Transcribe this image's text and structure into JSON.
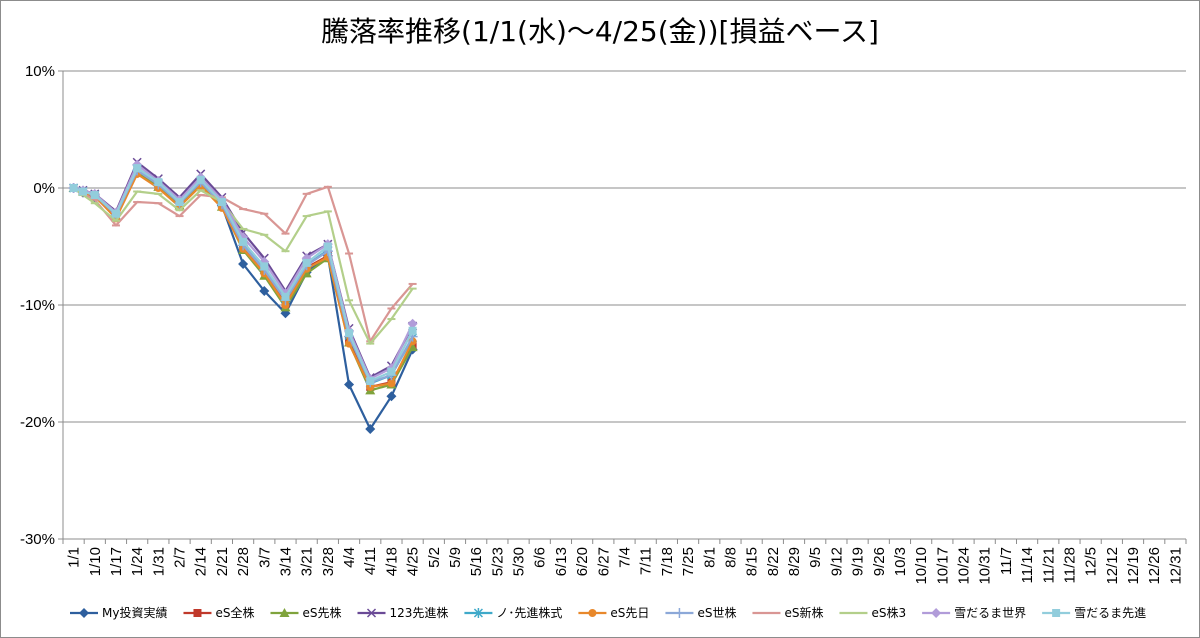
{
  "chart_data": {
    "type": "line",
    "title": "騰落率推移(1/1(水)～4/25(金))[損益ベース]",
    "ylim": [
      -30,
      10
    ],
    "yticks": [
      "10%",
      "0%",
      "-10%",
      "-20%",
      "-30%"
    ],
    "ytick_values": [
      10,
      0,
      -10,
      -20,
      -30
    ],
    "grid": "horizontal",
    "legend_position": "bottom",
    "categories": [
      "1/1",
      "1/10",
      "1/17",
      "1/24",
      "1/31",
      "2/7",
      "2/14",
      "2/21",
      "2/28",
      "3/7",
      "3/14",
      "3/21",
      "3/28",
      "4/4",
      "4/11",
      "4/18",
      "4/25",
      "5/2",
      "5/9",
      "5/16",
      "5/23",
      "5/30",
      "6/6",
      "6/13",
      "6/20",
      "6/27",
      "7/4",
      "7/11",
      "7/18",
      "7/25",
      "8/1",
      "8/8",
      "8/15",
      "8/22",
      "8/29",
      "9/5",
      "9/12",
      "9/19",
      "9/26",
      "10/3",
      "10/10",
      "10/17",
      "10/24",
      "10/31",
      "11/7",
      "11/14",
      "11/21",
      "11/28",
      "12/5",
      "12/12",
      "12/19",
      "12/26",
      "12/31"
    ],
    "x": [
      "1/1",
      "1/5",
      "1/10",
      "1/17",
      "1/24",
      "1/31",
      "2/7",
      "2/14",
      "2/21",
      "2/28",
      "3/7",
      "3/14",
      "3/21",
      "3/28",
      "4/4",
      "4/11",
      "4/18",
      "4/25"
    ],
    "series": [
      {
        "name": "My投資実績",
        "color": "#2e5f9e",
        "marker": "diamond",
        "values": [
          0,
          -0.4,
          -0.8,
          -2.2,
          1.5,
          0.3,
          -1.2,
          0.5,
          -1.5,
          -6.5,
          -8.8,
          -10.7,
          -7.2,
          -5.8,
          -16.8,
          -20.6,
          -17.8,
          -13.8
        ]
      },
      {
        "name": "eS全株",
        "color": "#c0392b",
        "marker": "square",
        "values": [
          0,
          -0.3,
          -0.6,
          -2.4,
          1.4,
          0.2,
          -1.4,
          0.4,
          -1.4,
          -5.0,
          -7.0,
          -9.9,
          -6.8,
          -5.8,
          -13.0,
          -17.0,
          -16.6,
          -13.4
        ]
      },
      {
        "name": "eS先株",
        "color": "#7fa33c",
        "marker": "triangle",
        "values": [
          0,
          -0.3,
          -0.7,
          -2.5,
          1.3,
          0.1,
          -1.5,
          0.3,
          -1.6,
          -5.3,
          -7.5,
          -10.2,
          -7.3,
          -6.0,
          -13.2,
          -17.3,
          -16.8,
          -13.6
        ]
      },
      {
        "name": "123先進株",
        "color": "#6a4a96",
        "marker": "x",
        "values": [
          0,
          -0.2,
          -0.5,
          -2.0,
          2.2,
          0.8,
          -0.8,
          1.2,
          -0.8,
          -3.8,
          -6.0,
          -8.8,
          -5.8,
          -4.8,
          -12.0,
          -16.2,
          -15.2,
          -11.8
        ]
      },
      {
        "name": "ノ･先進株式",
        "color": "#3fa9c9",
        "marker": "star",
        "values": [
          0,
          -0.3,
          -0.6,
          -2.3,
          1.6,
          0.4,
          -1.3,
          0.6,
          -1.3,
          -4.8,
          -7.0,
          -9.5,
          -6.6,
          -5.3,
          -12.6,
          -16.7,
          -16.0,
          -12.8
        ]
      },
      {
        "name": "eS先日",
        "color": "#e8882b",
        "marker": "circle",
        "values": [
          0,
          -0.4,
          -0.7,
          -2.6,
          1.2,
          0.0,
          -1.6,
          0.2,
          -1.7,
          -5.2,
          -7.3,
          -10.0,
          -6.9,
          -5.9,
          -13.3,
          -17.0,
          -16.7,
          -13.1
        ]
      },
      {
        "name": "eS世株",
        "color": "#8ca8d8",
        "marker": "plus",
        "values": [
          0,
          -0.3,
          -0.6,
          -2.3,
          1.5,
          0.3,
          -1.3,
          0.5,
          -1.4,
          -4.9,
          -7.0,
          -9.6,
          -6.6,
          -5.4,
          -12.7,
          -16.6,
          -16.0,
          -12.7
        ]
      },
      {
        "name": "eS新株",
        "color": "#d99694",
        "marker": "dash",
        "values": [
          0,
          -0.5,
          -1.0,
          -3.2,
          -1.2,
          -1.3,
          -2.4,
          -0.6,
          -0.8,
          -1.8,
          -2.2,
          -3.9,
          -0.5,
          0.1,
          -5.6,
          -13.1,
          -10.3,
          -8.2
        ]
      },
      {
        "name": "eS株3",
        "color": "#b3cf8a",
        "marker": "dash",
        "values": [
          0,
          -0.6,
          -1.3,
          -2.8,
          -0.3,
          -0.5,
          -1.9,
          -0.2,
          -1.2,
          -3.5,
          -4.0,
          -5.4,
          -2.4,
          -2.0,
          -9.6,
          -13.3,
          -11.2,
          -8.6
        ]
      },
      {
        "name": "雪だるま世界",
        "color": "#b19cd9",
        "marker": "diamond",
        "values": [
          0,
          -0.2,
          -0.5,
          -2.1,
          2.0,
          0.6,
          -1.0,
          0.9,
          -1.0,
          -4.2,
          -6.3,
          -9.0,
          -6.0,
          -4.8,
          -12.2,
          -16.3,
          -15.4,
          -11.6
        ]
      },
      {
        "name": "雪だるま先進",
        "color": "#92cddc",
        "marker": "square",
        "values": [
          0,
          -0.3,
          -0.6,
          -2.2,
          1.7,
          0.5,
          -1.2,
          0.7,
          -1.2,
          -4.6,
          -6.7,
          -9.3,
          -6.4,
          -5.0,
          -12.4,
          -16.5,
          -15.7,
          -12.2
        ]
      }
    ]
  }
}
